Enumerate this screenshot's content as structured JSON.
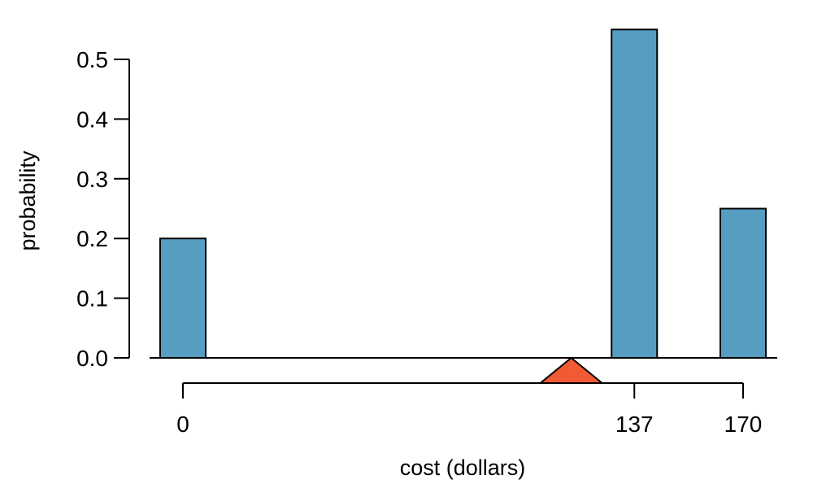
{
  "chart_data": {
    "type": "bar",
    "xlabel": "cost (dollars)",
    "ylabel": "probability",
    "x_values": [
      0,
      137,
      170
    ],
    "values": [
      0.2,
      0.55,
      0.25
    ],
    "ylim": [
      0,
      0.5
    ],
    "y_ticks": [
      0.0,
      0.1,
      0.2,
      0.3,
      0.4,
      0.5
    ],
    "y_tick_labels": [
      "0.0",
      "0.1",
      "0.2",
      "0.3",
      "0.4",
      "0.5"
    ],
    "x_ticks": [
      0,
      137,
      170
    ],
    "x_tick_labels": [
      "0",
      "137",
      "170"
    ],
    "xlim": [
      0,
      170
    ],
    "balance_point": 117.85,
    "grid": false,
    "colors": {
      "bar_fill": "#569EC1",
      "bar_stroke": "#000000",
      "fulcrum_fill": "#F05A35"
    }
  }
}
